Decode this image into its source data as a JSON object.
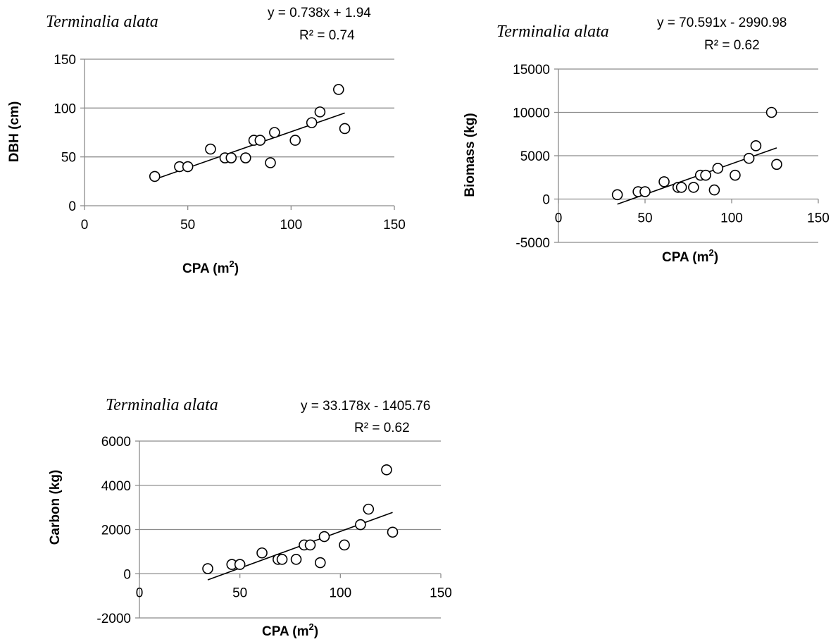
{
  "chart_data": [
    {
      "type": "scatter",
      "annotation_species": "Terminalia alata",
      "equation": "y = 0.738x + 1.94",
      "r_squared": "R² = 0.74",
      "xlabel": "CPA (m²)",
      "ylabel": "DBH (cm)",
      "xlim": [
        0,
        150
      ],
      "ylim": [
        0,
        150
      ],
      "x_ticks": [
        0,
        50,
        100,
        150
      ],
      "y_ticks": [
        0,
        50,
        100,
        150
      ],
      "grid": "horizontal",
      "trendline": {
        "slope": 0.738,
        "intercept": 1.94,
        "x_range": [
          34,
          126
        ]
      },
      "points": [
        {
          "x": 34,
          "y": 30
        },
        {
          "x": 46,
          "y": 40
        },
        {
          "x": 50,
          "y": 40
        },
        {
          "x": 61,
          "y": 58
        },
        {
          "x": 68,
          "y": 49
        },
        {
          "x": 71,
          "y": 49
        },
        {
          "x": 78,
          "y": 49
        },
        {
          "x": 82,
          "y": 67
        },
        {
          "x": 85,
          "y": 67
        },
        {
          "x": 90,
          "y": 44
        },
        {
          "x": 92,
          "y": 75
        },
        {
          "x": 102,
          "y": 67
        },
        {
          "x": 110,
          "y": 85
        },
        {
          "x": 114,
          "y": 96
        },
        {
          "x": 123,
          "y": 119
        },
        {
          "x": 126,
          "y": 79
        }
      ]
    },
    {
      "type": "scatter",
      "annotation_species": "Terminalia alata",
      "equation": "y = 70.591x - 2990.98",
      "r_squared": "R² = 0.62",
      "xlabel": "CPA (m²)",
      "ylabel": "Biomass (kg)",
      "xlim": [
        0,
        150
      ],
      "ylim": [
        -5000,
        15000
      ],
      "x_ticks": [
        0,
        50,
        100,
        150
      ],
      "y_ticks": [
        -5000,
        0,
        5000,
        10000,
        15000
      ],
      "grid": "horizontal",
      "trendline": {
        "slope": 70.591,
        "intercept": -2990.98,
        "x_range": [
          34,
          126
        ]
      },
      "points": [
        {
          "x": 34,
          "y": 500
        },
        {
          "x": 46,
          "y": 850
        },
        {
          "x": 50,
          "y": 850
        },
        {
          "x": 61,
          "y": 2000
        },
        {
          "x": 69,
          "y": 1350
        },
        {
          "x": 71,
          "y": 1350
        },
        {
          "x": 78,
          "y": 1350
        },
        {
          "x": 82,
          "y": 2750
        },
        {
          "x": 85,
          "y": 2750
        },
        {
          "x": 90,
          "y": 1050
        },
        {
          "x": 92,
          "y": 3550
        },
        {
          "x": 102,
          "y": 2750
        },
        {
          "x": 110,
          "y": 4700
        },
        {
          "x": 114,
          "y": 6150
        },
        {
          "x": 123,
          "y": 10000
        },
        {
          "x": 126,
          "y": 4000
        }
      ]
    },
    {
      "type": "scatter",
      "annotation_species": "Terminalia alata",
      "equation": "y = 33.178x - 1405.76",
      "r_squared": "R² = 0.62",
      "xlabel": "CPA (m²)",
      "ylabel": "Carbon (kg)",
      "xlim": [
        0,
        150
      ],
      "ylim": [
        -2000,
        6000
      ],
      "x_ticks": [
        0,
        50,
        100,
        150
      ],
      "y_ticks": [
        -2000,
        0,
        2000,
        4000,
        6000
      ],
      "grid": "horizontal",
      "trendline": {
        "slope": 33.178,
        "intercept": -1405.76,
        "x_range": [
          34,
          126
        ]
      },
      "points": [
        {
          "x": 34,
          "y": 230
        },
        {
          "x": 46,
          "y": 420
        },
        {
          "x": 50,
          "y": 420
        },
        {
          "x": 61,
          "y": 940
        },
        {
          "x": 69,
          "y": 650
        },
        {
          "x": 71,
          "y": 650
        },
        {
          "x": 78,
          "y": 650
        },
        {
          "x": 82,
          "y": 1300
        },
        {
          "x": 85,
          "y": 1300
        },
        {
          "x": 90,
          "y": 500
        },
        {
          "x": 92,
          "y": 1680
        },
        {
          "x": 102,
          "y": 1300
        },
        {
          "x": 110,
          "y": 2220
        },
        {
          "x": 114,
          "y": 2920
        },
        {
          "x": 123,
          "y": 4700
        },
        {
          "x": 126,
          "y": 1880
        }
      ]
    }
  ]
}
